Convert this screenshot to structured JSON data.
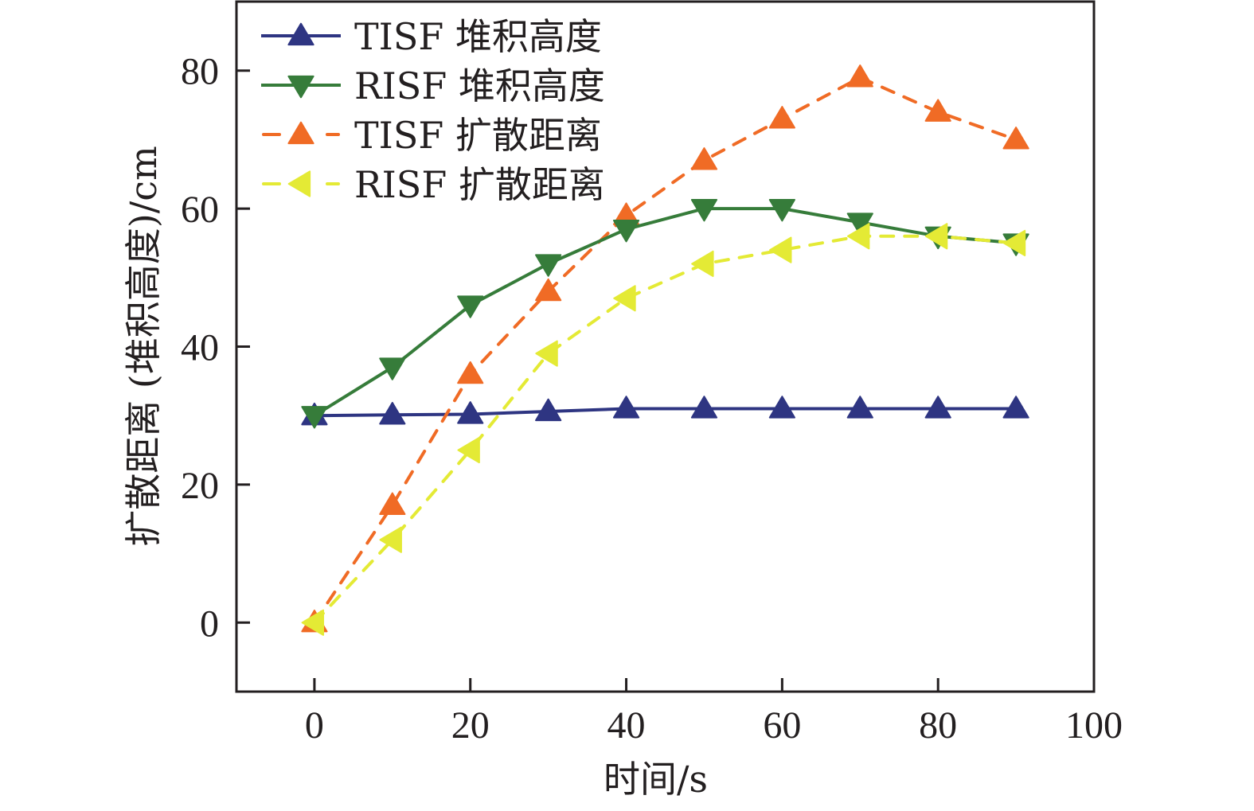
{
  "chart_data": {
    "type": "line",
    "title": "",
    "xlabel": "时间/s",
    "ylabel": "扩散距离 (堆积高度)/cm",
    "xlim": [
      -10,
      100
    ],
    "ylim": [
      -10,
      90
    ],
    "xticks": [
      0,
      20,
      40,
      60,
      80,
      100
    ],
    "yticks": [
      0,
      20,
      40,
      60,
      80
    ],
    "xtick_labels": [
      "0",
      "20",
      "40",
      "60",
      "80",
      "100"
    ],
    "ytick_labels": [
      "0",
      "20",
      "40",
      "60",
      "80"
    ],
    "grid": false,
    "legend_position": "top-left",
    "x": [
      0,
      10,
      20,
      30,
      40,
      50,
      60,
      70,
      80,
      90
    ],
    "series": [
      {
        "name": "TISF 堆积高度",
        "color": "#2e3582",
        "line_style": "solid",
        "marker": "triangle-up",
        "values": [
          30,
          30.1,
          30.2,
          30.6,
          31,
          31,
          31,
          31,
          31,
          31
        ]
      },
      {
        "name": "RISF 堆积高度",
        "color": "#367c3a",
        "line_style": "solid",
        "marker": "triangle-down",
        "values": [
          30,
          37,
          46,
          52,
          57,
          60,
          60,
          58,
          56,
          55
        ]
      },
      {
        "name": "TISF 扩散距离",
        "color": "#f06b25",
        "line_style": "dashed",
        "marker": "triangle-up",
        "values": [
          0,
          17,
          36,
          48,
          59,
          67,
          73,
          79,
          74,
          70
        ]
      },
      {
        "name": "RISF 扩散距离",
        "color": "#e4ea35",
        "line_style": "dashed",
        "marker": "triangle-left",
        "values": [
          0,
          12,
          25,
          39,
          47,
          52,
          54,
          56,
          56,
          55
        ]
      }
    ]
  }
}
